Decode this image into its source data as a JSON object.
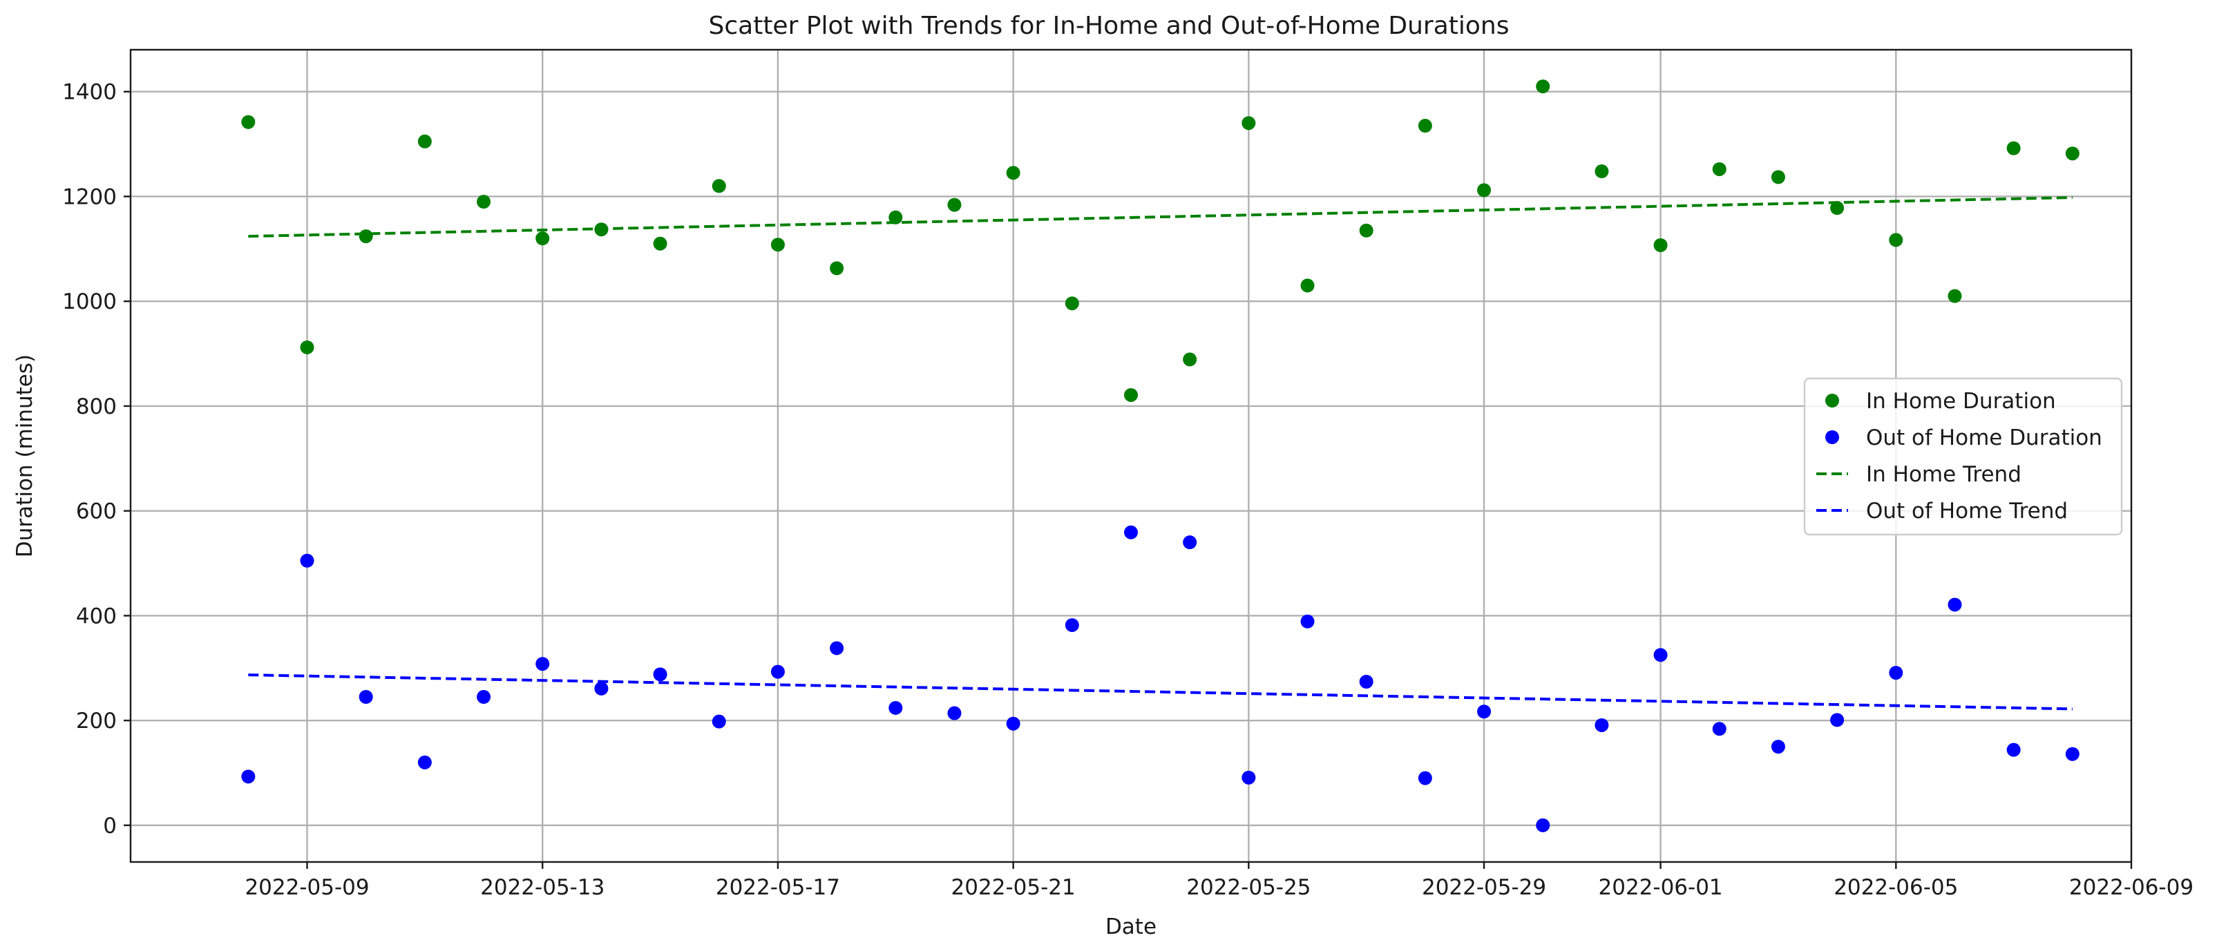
{
  "chart_data": {
    "type": "scatter",
    "title": "Scatter Plot with Trends for In-Home and Out-of-Home Durations",
    "xlabel": "Date",
    "ylabel": "Duration (minutes)",
    "xlim": [
      "2022-05-06",
      "2022-06-09"
    ],
    "ylim": [
      -70,
      1480
    ],
    "x_ticks": [
      "2022-05-09",
      "2022-05-13",
      "2022-05-17",
      "2022-05-21",
      "2022-05-25",
      "2022-05-29",
      "2022-06-01",
      "2022-06-05",
      "2022-06-09"
    ],
    "y_ticks": [
      0,
      200,
      400,
      600,
      800,
      1000,
      1200,
      1400
    ],
    "grid": true,
    "legend_position": "center-right",
    "x": [
      "2022-05-08",
      "2022-05-09",
      "2022-05-10",
      "2022-05-11",
      "2022-05-12",
      "2022-05-13",
      "2022-05-14",
      "2022-05-15",
      "2022-05-16",
      "2022-05-17",
      "2022-05-18",
      "2022-05-19",
      "2022-05-20",
      "2022-05-21",
      "2022-05-22",
      "2022-05-23",
      "2022-05-24",
      "2022-05-25",
      "2022-05-26",
      "2022-05-27",
      "2022-05-28",
      "2022-05-29",
      "2022-05-30",
      "2022-05-31",
      "2022-06-01",
      "2022-06-02",
      "2022-06-03",
      "2022-06-04",
      "2022-06-05",
      "2022-06-06",
      "2022-06-07",
      "2022-06-08"
    ],
    "series": [
      {
        "name": "In Home Duration",
        "kind": "scatter",
        "color": "#008000",
        "values": [
          1342,
          912,
          1124,
          1305,
          1190,
          1120,
          1137,
          1110,
          1220,
          1108,
          1063,
          1160,
          1184,
          1245,
          996,
          821,
          889,
          1340,
          1030,
          1135,
          1335,
          1212,
          1410,
          1248,
          1107,
          1252,
          1237,
          1178,
          1117,
          1010,
          1292,
          1282
        ]
      },
      {
        "name": "Out of Home Duration",
        "kind": "scatter",
        "color": "#0000ff",
        "values": [
          93,
          505,
          245,
          120,
          245,
          308,
          261,
          288,
          198,
          293,
          338,
          224,
          214,
          194,
          382,
          559,
          540,
          91,
          389,
          274,
          90,
          217,
          0,
          191,
          325,
          184,
          150,
          201,
          291,
          421,
          144,
          136
        ]
      },
      {
        "name": "In Home Trend",
        "kind": "line",
        "style": "dashed",
        "color": "#008000",
        "x": [
          "2022-05-08",
          "2022-06-08"
        ],
        "values": [
          1124,
          1198
        ]
      },
      {
        "name": "Out of Home Trend",
        "kind": "line",
        "style": "dashed",
        "color": "#0000ff",
        "x": [
          "2022-05-08",
          "2022-06-08"
        ],
        "values": [
          287,
          222
        ]
      }
    ]
  }
}
